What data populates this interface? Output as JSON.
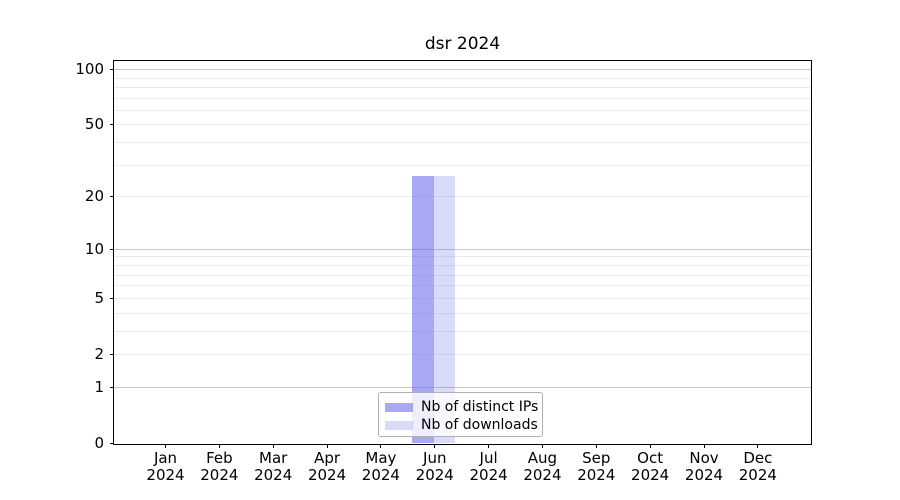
{
  "title": "dsr 2024",
  "chart_data": {
    "type": "bar",
    "title": "dsr 2024",
    "categories": [
      "Jan",
      "Feb",
      "Mar",
      "Apr",
      "May",
      "Jun",
      "Jul",
      "Aug",
      "Sep",
      "Oct",
      "Nov",
      "Dec"
    ],
    "year": "2024",
    "series": [
      {
        "name": "Nb of distinct IPs",
        "color": "rgba(97,97,239,0.55)",
        "flat_color": "#a9a9f6",
        "values": [
          0,
          0,
          0,
          0,
          0,
          26,
          0,
          0,
          0,
          0,
          0,
          0
        ]
      },
      {
        "name": "Nb of downloads",
        "color": "rgba(97,97,239,0.23)",
        "flat_color": "#dbdbfa",
        "values": [
          0,
          0,
          0,
          0,
          0,
          26,
          0,
          0,
          0,
          0,
          0,
          0
        ]
      }
    ],
    "xlabel": "",
    "ylabel": "",
    "yticks": [
      0,
      1,
      2,
      5,
      10,
      20,
      50,
      100
    ],
    "minor_gridlines": [
      2,
      3,
      4,
      5,
      6,
      7,
      8,
      9,
      20,
      30,
      40,
      50,
      60,
      70,
      80,
      90
    ],
    "major_gridlines": [
      1,
      10,
      100
    ],
    "ylim": [
      0,
      112
    ],
    "scale": "log1p",
    "grid": "both",
    "legend_position": "lower center",
    "colors": {
      "major_grid": "#c8c8c8",
      "minor_grid": "#ebebeb",
      "axis": "#000000",
      "text": "#000000",
      "legend_border": "#b0b0b0"
    }
  }
}
